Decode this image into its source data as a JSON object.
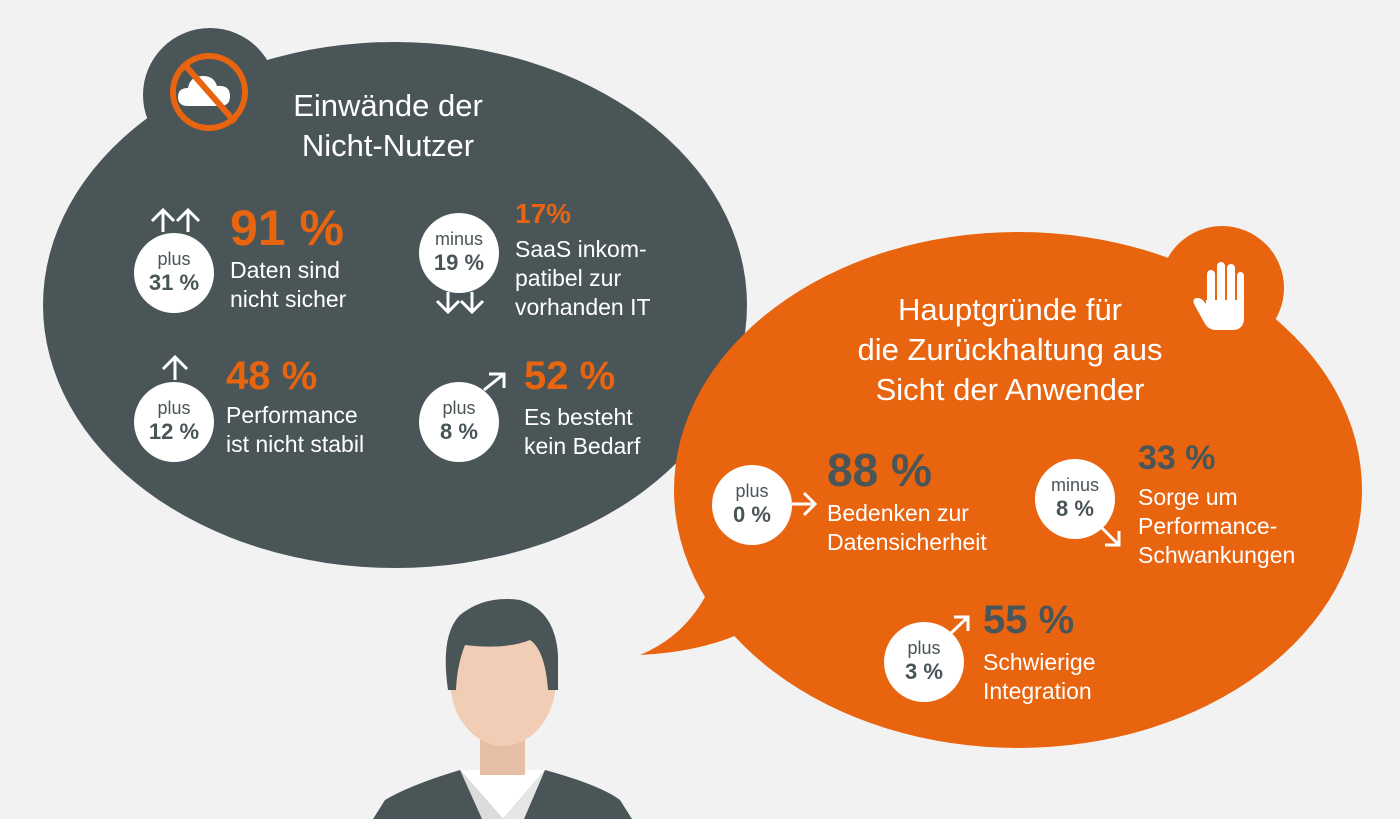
{
  "colors": {
    "dark_bubble": "#4a5558",
    "orange_bubble": "#e8640f",
    "background": "#f2f2f2",
    "white": "#ffffff"
  },
  "icons": {
    "left_badge": "cloud-crossed-out-icon",
    "right_badge": "raised-hand-icon",
    "person": "person-avatar"
  },
  "left": {
    "title_line1": "Einwände der",
    "title_line2": "Nicht-Nutzer",
    "items": [
      {
        "change_word": "plus",
        "change_pct": "31 %",
        "arrow": "double-up",
        "value": "91 %",
        "desc_line1": "Daten sind",
        "desc_line2": "nicht sicher"
      },
      {
        "change_word": "minus",
        "change_pct": "19 %",
        "arrow": "double-down",
        "value": "17%",
        "desc_line1": "SaaS inkom-",
        "desc_line2": "patibel zur",
        "desc_line3": "vorhanden IT"
      },
      {
        "change_word": "plus",
        "change_pct": "12 %",
        "arrow": "up",
        "value": "48 %",
        "desc_line1": "Performance",
        "desc_line2": "ist nicht stabil"
      },
      {
        "change_word": "plus",
        "change_pct": "8 %",
        "arrow": "diagonal-up",
        "value": "52 %",
        "desc_line1": "Es besteht",
        "desc_line2": "kein Bedarf"
      }
    ]
  },
  "right": {
    "title_line1": "Hauptgründe für",
    "title_line2": "die Zurückhaltung aus",
    "title_line3": "Sicht der Anwender",
    "items": [
      {
        "change_word": "plus",
        "change_pct": "0 %",
        "arrow": "right",
        "value": "88 %",
        "desc_line1": "Bedenken zur",
        "desc_line2": "Datensicherheit"
      },
      {
        "change_word": "minus",
        "change_pct": "8 %",
        "arrow": "diagonal-down",
        "value": "33 %",
        "desc_line1": "Sorge um",
        "desc_line2": "Performance-",
        "desc_line3": "Schwankungen"
      },
      {
        "change_word": "plus",
        "change_pct": "3 %",
        "arrow": "diagonal-up",
        "value": "55 %",
        "desc_line1": "Schwierige",
        "desc_line2": "Integration"
      }
    ]
  }
}
